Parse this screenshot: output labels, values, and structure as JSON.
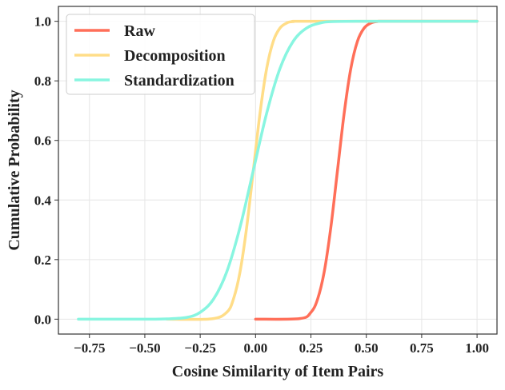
{
  "chart_data": {
    "type": "line",
    "title": "",
    "xlabel": "Cosine Similarity of Item Pairs",
    "ylabel": "Cumulative Probability",
    "xlim": [
      -0.89,
      1.09
    ],
    "ylim": [
      -0.05,
      1.05
    ],
    "xticks": [
      -0.75,
      -0.5,
      -0.25,
      0.0,
      0.25,
      0.5,
      0.75,
      1.0
    ],
    "xtick_labels": [
      "−0.75",
      "−0.50",
      "−0.25",
      "0.00",
      "0.25",
      "0.50",
      "0.75",
      "1.00"
    ],
    "yticks": [
      0.0,
      0.2,
      0.4,
      0.6,
      0.8,
      1.0
    ],
    "ytick_labels": [
      "0.0",
      "0.2",
      "0.4",
      "0.6",
      "0.8",
      "1.0"
    ],
    "grid": true,
    "legend_position": "top-left",
    "series": [
      {
        "name": "Raw",
        "color": "#FF6F59",
        "x": [
          0,
          0.2,
          0.25,
          0.28,
          0.31,
          0.34,
          0.37,
          0.4,
          0.43,
          0.46,
          0.49,
          0.52,
          0.55,
          0.6,
          1.0
        ],
        "y": [
          0,
          0.002,
          0.023,
          0.067,
          0.159,
          0.309,
          0.5,
          0.691,
          0.841,
          0.933,
          0.977,
          0.994,
          0.999,
          1,
          1
        ]
      },
      {
        "name": "Decomposition",
        "color": "#FFDD88",
        "x": [
          -0.4,
          -0.2,
          -0.13,
          -0.1,
          -0.07,
          -0.04,
          -0.01,
          0.02,
          0.05,
          0.08,
          0.11,
          0.14,
          0.17,
          0.25,
          1.0
        ],
        "y": [
          0,
          0.001,
          0.023,
          0.067,
          0.159,
          0.309,
          0.5,
          0.691,
          0.841,
          0.933,
          0.977,
          0.994,
          0.999,
          1,
          1
        ]
      },
      {
        "name": "Standardization",
        "color": "#88F5E0",
        "x": [
          -0.8,
          -0.5,
          -0.4,
          -0.31,
          -0.25,
          -0.19,
          -0.13,
          -0.07,
          -0.01,
          0.05,
          0.11,
          0.17,
          0.23,
          0.29,
          0.35,
          0.5,
          1.0
        ],
        "y": [
          0,
          0,
          0.001,
          0.006,
          0.023,
          0.067,
          0.159,
          0.309,
          0.5,
          0.691,
          0.841,
          0.933,
          0.977,
          0.994,
          0.999,
          1,
          1
        ]
      }
    ]
  }
}
